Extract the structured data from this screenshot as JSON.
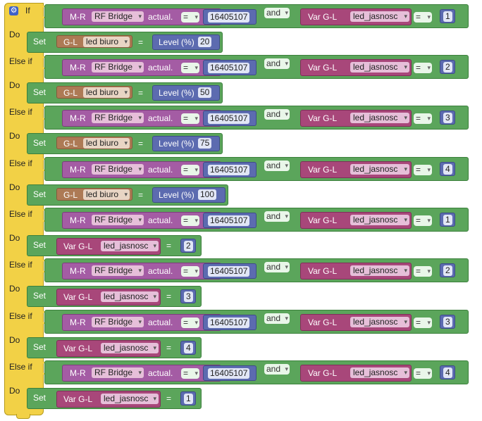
{
  "keywords": {
    "if": "If",
    "else_if": "Else if",
    "do": "Do",
    "set": "Set",
    "and": "and"
  },
  "sensor": {
    "prefix": "M-R",
    "device": "RF Bridge",
    "attribute": "actual."
  },
  "operator": "=",
  "code": "16405107",
  "variable": {
    "prefix": "Var G-L",
    "name": "led_jasnosc"
  },
  "output": {
    "prefix": "G-L",
    "device": "led biuro",
    "level_label": "Level (%)"
  },
  "branches": [
    {
      "var_value": "1",
      "action": "level",
      "value": "20"
    },
    {
      "var_value": "2",
      "action": "level",
      "value": "50"
    },
    {
      "var_value": "3",
      "action": "level",
      "value": "75"
    },
    {
      "var_value": "4",
      "action": "level",
      "value": "100"
    },
    {
      "var_value": "1",
      "action": "var",
      "value": "2"
    },
    {
      "var_value": "2",
      "action": "var",
      "value": "3"
    },
    {
      "var_value": "3",
      "action": "var",
      "value": "4"
    },
    {
      "var_value": "4",
      "action": "var",
      "value": "1"
    }
  ],
  "colors": {
    "if_frame": "#f2d146",
    "logic_block": "#5ba55b",
    "sensor_block": "#a45ca4",
    "variable_block": "#a8477a",
    "device_block": "#ad7a55",
    "number_block": "#5c6bb0",
    "gear_icon": "#3f62c8"
  },
  "icons": {
    "settings": "gear-icon"
  }
}
